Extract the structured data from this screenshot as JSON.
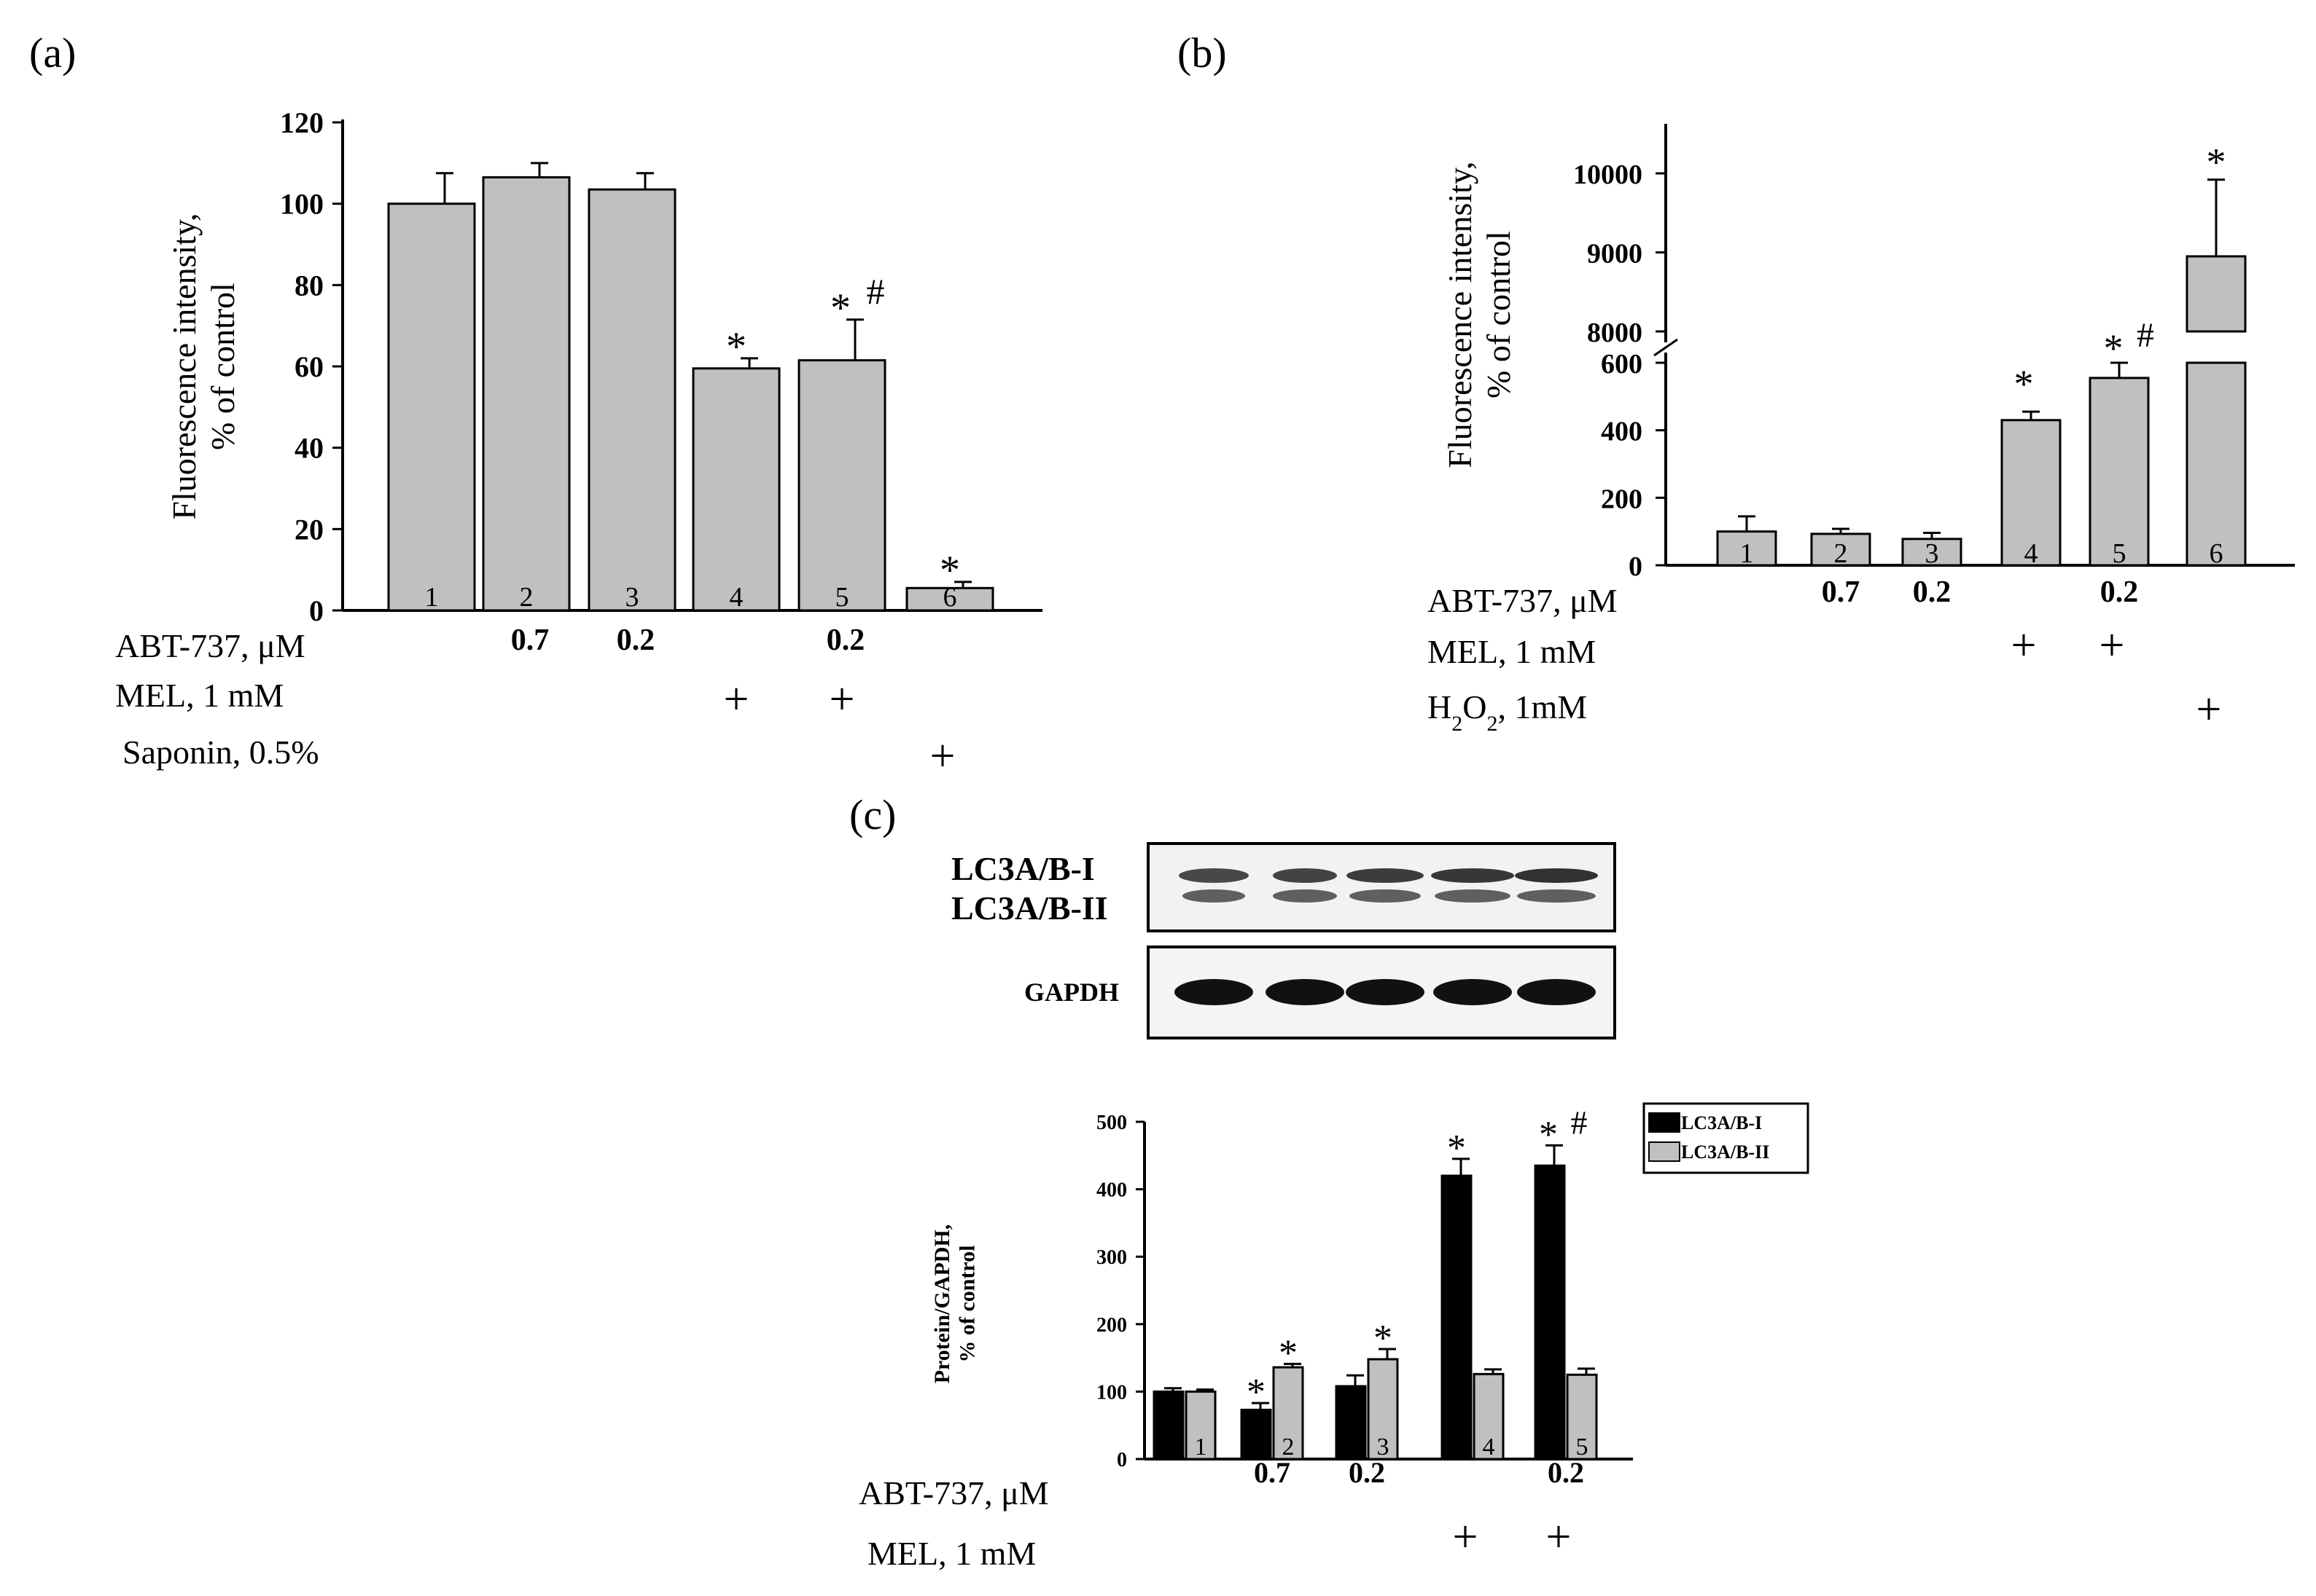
{
  "panels": {
    "a": {
      "label": "(a)"
    },
    "b": {
      "label": "(b)"
    },
    "c": {
      "label": "(c)"
    }
  },
  "chart_data": [
    {
      "id": "a",
      "type": "bar",
      "ylabel_line1": "Fluorescence intensity,",
      "ylabel_line2": "% of control",
      "ylim": [
        0,
        120
      ],
      "yticks": [
        0,
        20,
        40,
        60,
        80,
        100,
        120
      ],
      "categories": [
        "1",
        "2",
        "3",
        "4",
        "5",
        "6"
      ],
      "values": [
        100,
        106.5,
        103.5,
        59.5,
        61.5,
        5.5
      ],
      "errors": [
        7.5,
        3.5,
        4,
        2.5,
        10,
        1.5
      ],
      "annotations": [
        "",
        "",
        "",
        "*",
        "*#",
        "*"
      ],
      "bar_color": "#c0c0c0",
      "conditions": [
        {
          "label": "ABT-737, μM",
          "values": [
            "",
            "0.7",
            "0.2",
            "",
            "0.2",
            ""
          ]
        },
        {
          "label": "MEL, 1 mM",
          "values": [
            "",
            "",
            "",
            "+",
            "+",
            ""
          ]
        },
        {
          "label": "Saponin, 0.5%",
          "values": [
            "",
            "",
            "",
            "",
            "",
            "+"
          ]
        }
      ]
    },
    {
      "id": "b",
      "type": "bar",
      "ylabel_line1": "Fluorescence intensity,",
      "ylabel_line2": "% of control",
      "axis_break": true,
      "lower_ylim": [
        0,
        600
      ],
      "lower_yticks": [
        0,
        200,
        400,
        600
      ],
      "upper_ylim": [
        8000,
        10000
      ],
      "upper_yticks": [
        8000,
        9000,
        10000
      ],
      "categories": [
        "1",
        "2",
        "3",
        "4",
        "5",
        "6"
      ],
      "values": [
        100,
        93,
        78,
        430,
        555,
        8950
      ],
      "errors": [
        45,
        15,
        18,
        25,
        45,
        970
      ],
      "annotations": [
        "",
        "",
        "",
        "*",
        "*#",
        "*"
      ],
      "bar_color": "#c0c0c0",
      "conditions": [
        {
          "label": "ABT-737, μM",
          "values": [
            "",
            "0.7",
            "0.2",
            "",
            "0.2",
            ""
          ]
        },
        {
          "label": "MEL, 1 mM",
          "values": [
            "",
            "",
            "",
            "+",
            "+",
            ""
          ]
        },
        {
          "label_html": "H<tspan baseline-shift='sub' font-size='30'>2</tspan>O<tspan baseline-shift='sub' font-size='30'>2</tspan>, 1mM",
          "label": "H2O2, 1mM",
          "values": [
            "",
            "",
            "",
            "",
            "",
            "+"
          ]
        }
      ]
    },
    {
      "id": "c",
      "type": "bar",
      "ylabel_line1": "Protein/GAPDH,",
      "ylabel_line2": "% of control",
      "ylim": [
        0,
        500
      ],
      "yticks": [
        0,
        100,
        200,
        300,
        400,
        500
      ],
      "categories": [
        "1",
        "2",
        "3",
        "4",
        "5"
      ],
      "series": [
        {
          "name": "LC3A/B-I",
          "color": "#000000",
          "values": [
            100,
            73,
            108,
            420,
            435
          ],
          "errors": [
            5,
            10,
            16,
            25,
            30
          ],
          "annotations": [
            "",
            "*",
            "",
            "*",
            "*#"
          ]
        },
        {
          "name": "LC3A/B-II",
          "color": "#c0c0c0",
          "values": [
            100,
            136,
            148,
            126,
            125
          ],
          "errors": [
            3,
            5,
            15,
            7,
            9
          ],
          "annotations": [
            "",
            "*",
            "*",
            "",
            ""
          ]
        }
      ],
      "legend": "top-right",
      "conditions": [
        {
          "label": "ABT-737, μM",
          "values": [
            "",
            "0.7",
            "0.2",
            "",
            "0.2"
          ]
        },
        {
          "label": "MEL, 1 mM",
          "values": [
            "",
            "",
            "",
            "+",
            "+"
          ]
        }
      ]
    }
  ],
  "blot": {
    "bands_top": [
      "LC3A/B-I",
      "LC3A/B-II"
    ],
    "band_bottom": "GAPDH"
  }
}
